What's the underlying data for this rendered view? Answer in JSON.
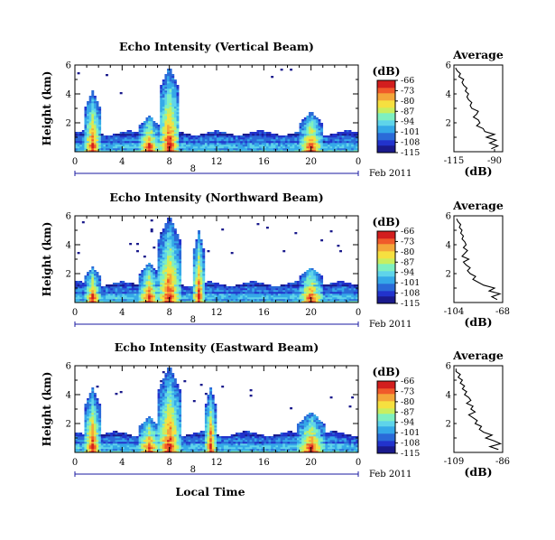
{
  "figure": {
    "xlabel": "Local Time",
    "day_label": "8",
    "date_label": "Feb 2011"
  },
  "colors": {
    "colormap": [
      "#1a1a8c",
      "#2233cc",
      "#2a6ad8",
      "#35a8e8",
      "#5fd4ea",
      "#7ff0c0",
      "#c8ee60",
      "#f6e040",
      "#f4a63a",
      "#f05a2a",
      "#d21e1e"
    ]
  },
  "chart_data": [
    {
      "type": "heatmap",
      "title": "Echo Intensity (Vertical Beam)",
      "ylabel": "Height (km)",
      "x_ticks": [
        "0",
        "4",
        "8",
        "12",
        "16",
        "20",
        "0"
      ],
      "x_range": [
        0,
        24
      ],
      "y_ticks": [
        "2",
        "4",
        "6"
      ],
      "y_range": [
        0,
        6
      ],
      "colorbar": {
        "unit": "(dB)",
        "ticks": [
          "-66",
          "-73",
          "-80",
          "-87",
          "-94",
          "-101",
          "-108",
          "-115"
        ],
        "range": [
          -115,
          -66
        ]
      },
      "bursts": [
        [
          1.5,
          4.2,
          0.7
        ],
        [
          6.3,
          2.5,
          0.9
        ],
        [
          8.0,
          6.0,
          0.9
        ],
        [
          20.0,
          2.8,
          1.0
        ]
      ],
      "profile": {
        "title": "Average",
        "xlabel": "(dB)",
        "x_ticks": [
          "-115",
          "-90"
        ],
        "x_range": [
          -115,
          -85
        ],
        "y_ticks": [
          "2",
          "4",
          "6"
        ],
        "y_range": [
          0,
          6
        ],
        "heights": [
          0.2,
          0.4,
          0.6,
          0.8,
          1.0,
          1.2,
          1.4,
          1.6,
          1.8,
          2.0,
          2.2,
          2.4,
          2.6,
          2.8,
          3.0,
          3.2,
          3.4,
          3.6,
          3.8,
          4.0,
          4.2,
          4.4,
          4.6,
          4.8,
          5.0,
          5.2,
          5.4,
          5.6,
          5.8
        ],
        "values": [
          -92,
          -88,
          -93,
          -89,
          -95,
          -90,
          -96,
          -97,
          -101,
          -99,
          -100,
          -103,
          -101,
          -100,
          -104,
          -105,
          -104,
          -106,
          -107,
          -106,
          -108,
          -107,
          -109,
          -110,
          -109,
          -112,
          -111,
          -113,
          -114
        ]
      }
    },
    {
      "type": "heatmap",
      "title": "Echo Intensity (Northward Beam)",
      "ylabel": "Height (km)",
      "x_ticks": [
        "0",
        "4",
        "8",
        "12",
        "16",
        "20",
        "0"
      ],
      "x_range": [
        0,
        24
      ],
      "y_ticks": [
        "2",
        "4",
        "6"
      ],
      "y_range": [
        0,
        6
      ],
      "colorbar": {
        "unit": "(dB)",
        "ticks": [
          "-66",
          "-73",
          "-80",
          "-87",
          "-94",
          "-101",
          "-108",
          "-115"
        ],
        "range": [
          -115,
          -66
        ]
      },
      "bursts": [
        [
          1.5,
          2.5,
          0.7
        ],
        [
          6.3,
          2.8,
          0.9
        ],
        [
          8.0,
          6.0,
          1.0
        ],
        [
          10.5,
          5.0,
          0.5
        ],
        [
          20.0,
          2.5,
          1.0
        ]
      ],
      "profile": {
        "title": "Average",
        "xlabel": "(dB)",
        "x_ticks": [
          "-104",
          "-68"
        ],
        "x_range": [
          -104,
          -68
        ],
        "y_ticks": [
          "2",
          "4",
          "6"
        ],
        "y_range": [
          0,
          6
        ],
        "heights": [
          0.2,
          0.4,
          0.6,
          0.8,
          1.0,
          1.2,
          1.4,
          1.6,
          1.8,
          2.0,
          2.2,
          2.4,
          2.6,
          2.8,
          3.0,
          3.2,
          3.4,
          3.6,
          3.8,
          4.0,
          4.2,
          4.4,
          4.6,
          4.8,
          5.0,
          5.2,
          5.4,
          5.6,
          5.8
        ],
        "values": [
          -72,
          -76,
          -70,
          -78,
          -74,
          -82,
          -86,
          -90,
          -88,
          -92,
          -94,
          -92,
          -95,
          -97,
          -93,
          -98,
          -96,
          -94,
          -97,
          -95,
          -96,
          -98,
          -97,
          -99,
          -98,
          -100,
          -99,
          -101,
          -102
        ]
      }
    },
    {
      "type": "heatmap",
      "title": "Echo Intensity (Eastward Beam)",
      "ylabel": "Height (km)",
      "x_ticks": [
        "0",
        "4",
        "8",
        "12",
        "16",
        "20",
        "0"
      ],
      "x_range": [
        0,
        24
      ],
      "y_ticks": [
        "2",
        "4",
        "6"
      ],
      "y_range": [
        0,
        6
      ],
      "colorbar": {
        "unit": "(dB)",
        "ticks": [
          "-66",
          "-73",
          "-80",
          "-87",
          "-94",
          "-101",
          "-108",
          "-115"
        ],
        "range": [
          -115,
          -66
        ]
      },
      "bursts": [
        [
          1.5,
          4.5,
          0.7
        ],
        [
          6.3,
          2.5,
          0.9
        ],
        [
          8.0,
          6.0,
          1.0
        ],
        [
          11.5,
          4.5,
          0.5
        ],
        [
          20.0,
          2.8,
          1.2
        ]
      ],
      "profile": {
        "title": "Average",
        "xlabel": "(dB)",
        "x_ticks": [
          "-109",
          "-86"
        ],
        "x_range": [
          -109,
          -86
        ],
        "y_ticks": [
          "2",
          "4",
          "6"
        ],
        "y_range": [
          0,
          6
        ],
        "heights": [
          0.2,
          0.4,
          0.6,
          0.8,
          1.0,
          1.2,
          1.4,
          1.6,
          1.8,
          2.0,
          2.2,
          2.4,
          2.6,
          2.8,
          3.0,
          3.2,
          3.4,
          3.6,
          3.8,
          4.0,
          4.2,
          4.4,
          4.6,
          4.8,
          5.0,
          5.2,
          5.4,
          5.6,
          5.8
        ],
        "values": [
          -88,
          -92,
          -87,
          -90,
          -94,
          -91,
          -95,
          -97,
          -96,
          -99,
          -98,
          -100,
          -102,
          -99,
          -101,
          -100,
          -103,
          -101,
          -102,
          -104,
          -103,
          -105,
          -104,
          -106,
          -105,
          -107,
          -106,
          -108,
          -108
        ]
      }
    }
  ]
}
